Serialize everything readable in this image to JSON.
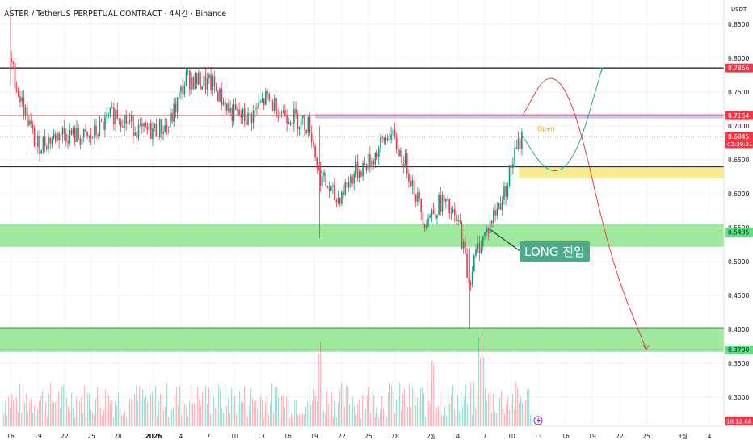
{
  "header": {
    "title": "ASTER / TetherUS PERPETUAL CONTRACT · 4시간 · Binance"
  },
  "price_axis": {
    "currency": "USDT",
    "ticks": [
      "0.8500",
      "0.8000",
      "0.7500",
      "0.7000",
      "0.6500",
      "0.6000",
      "0.5500",
      "0.5000",
      "0.4500",
      "0.4000",
      "0.3500",
      "0.3000"
    ],
    "badges": [
      {
        "label": "0.7856",
        "value": 0.7856,
        "color": "#f23645"
      },
      {
        "label": "0.7154",
        "value": 0.7154,
        "color": "#f23645"
      },
      {
        "label": "0.6845",
        "sub": "02:39:21",
        "value": 0.6845,
        "color": "#f23645"
      },
      {
        "label": "0.5435",
        "value": 0.5435,
        "color": "#5fdf80"
      },
      {
        "label": "0.3700",
        "value": 0.37,
        "color": "#5fdf80"
      }
    ],
    "volume_badge": "18.12.66"
  },
  "time_axis": {
    "labels": [
      "16",
      "19",
      "22",
      "25",
      "28",
      "2026",
      "4",
      "7",
      "10",
      "13",
      "16",
      "19",
      "22",
      "25",
      "28",
      "2월",
      "4",
      "7",
      "10",
      "13",
      "16",
      "19",
      "22",
      "25",
      "3월",
      "4"
    ]
  },
  "annotations": {
    "long_entry": "LONG 진입",
    "open_label": "Open"
  },
  "colors": {
    "up": "#089981",
    "down": "#f23645",
    "zone_green": "#7ee27e",
    "zone_yellow": "#f7ea7a",
    "resistance_band": "#ccbfe6",
    "projection_red": "#f23645",
    "projection_teal": "#26a69a"
  },
  "chart_data": {
    "type": "candlestick",
    "title": "ASTER / TetherUS PERPETUAL CONTRACT · 4시간 · Binance",
    "ylim": [
      0.27,
      0.875
    ],
    "ylabel": "USDT",
    "date_range": [
      "2025-12-16",
      "2026-03-04"
    ],
    "horizontal_levels": [
      0.7856,
      0.7154,
      0.6845,
      0.6398,
      0.5435,
      0.4024,
      0.37
    ],
    "zones": [
      {
        "type": "support",
        "color": "green",
        "from": 0.5217,
        "to": 0.5553
      },
      {
        "type": "support",
        "color": "green",
        "from": 0.367,
        "to": 0.4024
      },
      {
        "type": "target",
        "color": "yellow",
        "from": 0.623,
        "to": 0.6398
      },
      {
        "type": "resistance",
        "color": "purple",
        "from": 0.711,
        "to": 0.718
      }
    ],
    "price_path": [
      {
        "date": "2025-12-16",
        "price": 0.8
      },
      {
        "date": "2025-12-17",
        "price": 0.75
      },
      {
        "date": "2025-12-19",
        "price": 0.67
      },
      {
        "date": "2025-12-22",
        "price": 0.69
      },
      {
        "date": "2025-12-25",
        "price": 0.68
      },
      {
        "date": "2025-12-28",
        "price": 0.72
      },
      {
        "date": "2025-12-31",
        "price": 0.69
      },
      {
        "date": "2026-01-03",
        "price": 0.7
      },
      {
        "date": "2026-01-05",
        "price": 0.77
      },
      {
        "date": "2026-01-08",
        "price": 0.76
      },
      {
        "date": "2026-01-10",
        "price": 0.72
      },
      {
        "date": "2026-01-12",
        "price": 0.71
      },
      {
        "date": "2026-01-14",
        "price": 0.74
      },
      {
        "date": "2026-01-16",
        "price": 0.72
      },
      {
        "date": "2026-01-19",
        "price": 0.7
      },
      {
        "date": "2026-01-20",
        "price": 0.63
      },
      {
        "date": "2026-01-22",
        "price": 0.59
      },
      {
        "date": "2026-01-24",
        "price": 0.63
      },
      {
        "date": "2026-01-26",
        "price": 0.65
      },
      {
        "date": "2026-01-28",
        "price": 0.69
      },
      {
        "date": "2026-01-30",
        "price": 0.64
      },
      {
        "date": "2026-02-01",
        "price": 0.56
      },
      {
        "date": "2026-02-03",
        "price": 0.59
      },
      {
        "date": "2026-02-05",
        "price": 0.55
      },
      {
        "date": "2026-02-06",
        "price": 0.47
      },
      {
        "date": "2026-02-07",
        "price": 0.52
      },
      {
        "date": "2026-02-08",
        "price": 0.545
      },
      {
        "date": "2026-02-10",
        "price": 0.6
      },
      {
        "date": "2026-02-11",
        "price": 0.65
      },
      {
        "date": "2026-02-12",
        "price": 0.6845
      }
    ],
    "projection_up": [
      {
        "date": "2026-02-12",
        "price": 0.7154
      },
      {
        "date": "2026-02-15",
        "price": 0.7856
      },
      {
        "date": "2026-02-18",
        "price": 0.73
      },
      {
        "date": "2026-02-22",
        "price": 0.5
      },
      {
        "date": "2026-02-26",
        "price": 0.37
      }
    ],
    "projection_alt": [
      {
        "date": "2026-02-12",
        "price": 0.6845
      },
      {
        "date": "2026-02-15",
        "price": 0.625
      },
      {
        "date": "2026-02-18",
        "price": 0.65
      },
      {
        "date": "2026-02-21",
        "price": 0.7856
      }
    ]
  }
}
